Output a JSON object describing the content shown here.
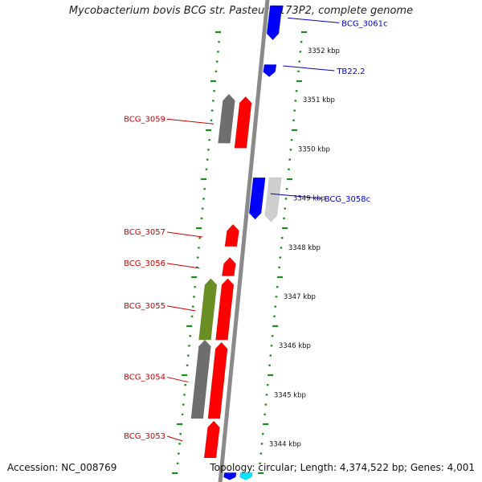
{
  "title": "Mycobacterium bovis BCG str. Pasteur 1173P2, complete genome",
  "accession": "Accession: NC_008769",
  "stats": "Topology: circular; Length: 4,374,522 bp; Genes: 4,001",
  "colors": {
    "forward": "#ff0000",
    "reverse": "#0000ff",
    "grey": "#6e6e6e",
    "lightgrey": "#cfcfcf",
    "olive": "#6b8e23",
    "cyan": "#00e5ff",
    "ticks": "#1a8a1a",
    "backbone": "#8a8a8a"
  },
  "ruler": [
    {
      "kbp": 3352,
      "label": "3352 kbp"
    },
    {
      "kbp": 3351,
      "label": "3351 kbp"
    },
    {
      "kbp": 3350,
      "label": "3350 kbp"
    },
    {
      "kbp": 3349,
      "label": "3349 kbp"
    },
    {
      "kbp": 3348,
      "label": "3348 kbp"
    },
    {
      "kbp": 3347,
      "label": "3347 kbp"
    },
    {
      "kbp": 3346,
      "label": "3346 kbp"
    },
    {
      "kbp": 3345,
      "label": "3345 kbp"
    },
    {
      "kbp": 3344,
      "label": "3344 kbp"
    }
  ],
  "genes": [
    {
      "id": "bcg3061c",
      "label": "BCG_3061c",
      "strand": "-",
      "lane": 1,
      "color": "reverse",
      "start": 3352.2,
      "end": 3352.9
    },
    {
      "id": "tb222",
      "label": "TB22.2",
      "strand": "-",
      "lane": 1,
      "color": "reverse",
      "start": 3351.45,
      "end": 3351.7
    },
    {
      "id": "bcg3059_grey",
      "label": "",
      "strand": "+",
      "lane": 1,
      "color": "grey",
      "start": 3350.1,
      "end": 3351.1
    },
    {
      "id": "bcg3059",
      "label": "BCG_3059",
      "strand": "+",
      "lane": 2,
      "color": "forward",
      "start": 3350.0,
      "end": 3351.05
    },
    {
      "id": "bcg3058c",
      "label": "BCG_3058c",
      "strand": "-",
      "lane": 1,
      "color": "reverse",
      "start": 3348.55,
      "end": 3349.4
    },
    {
      "id": "bcg3058c_grey",
      "label": "",
      "strand": "-",
      "lane": 2,
      "color": "lightgrey",
      "start": 3348.5,
      "end": 3349.4
    },
    {
      "id": "bcg3057",
      "label": "BCG_3057",
      "strand": "+",
      "lane": 2,
      "color": "forward",
      "start": 3348.0,
      "end": 3348.45
    },
    {
      "id": "bcg3056",
      "label": "BCG_3056",
      "strand": "+",
      "lane": 2,
      "color": "forward",
      "start": 3347.4,
      "end": 3347.78
    },
    {
      "id": "bcg3055_olive",
      "label": "",
      "strand": "+",
      "lane": 1,
      "color": "olive",
      "start": 3346.1,
      "end": 3347.35
    },
    {
      "id": "bcg3055",
      "label": "BCG_3055",
      "strand": "+",
      "lane": 2,
      "color": "forward",
      "start": 3346.1,
      "end": 3347.35
    },
    {
      "id": "bcg3054_grey",
      "label": "",
      "strand": "+",
      "lane": 1,
      "color": "grey",
      "start": 3344.5,
      "end": 3346.1
    },
    {
      "id": "bcg3054",
      "label": "BCG_3054",
      "strand": "+",
      "lane": 2,
      "color": "forward",
      "start": 3344.5,
      "end": 3346.05
    },
    {
      "id": "bcg3053",
      "label": "BCG_3053",
      "strand": "+",
      "lane": 2,
      "color": "forward",
      "start": 3343.7,
      "end": 3344.45
    },
    {
      "id": "bottom_blue",
      "label": "",
      "strand": "-",
      "lane": 1,
      "color": "reverse",
      "start": 3343.25,
      "end": 3343.4
    },
    {
      "id": "bottom_cyan",
      "label": "",
      "strand": "-",
      "lane": 2,
      "color": "cyan",
      "start": 3343.25,
      "end": 3343.4
    }
  ]
}
